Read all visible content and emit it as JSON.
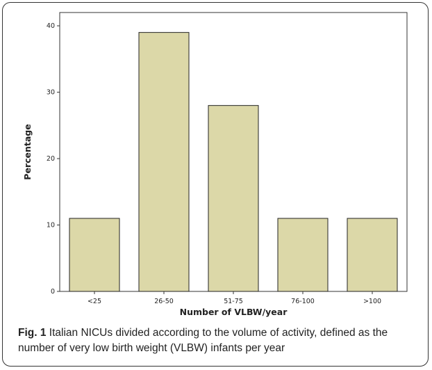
{
  "caption": {
    "label": "Fig. 1",
    "text": "Italian NICUs divided according to the volume of activity, defined as the number of very low birth weight (VLBW) infants per year"
  },
  "chart_data": {
    "type": "bar",
    "categories": [
      "<25",
      "26-50",
      "51-75",
      "76-100",
      ">100"
    ],
    "values": [
      11,
      39,
      28,
      11,
      11
    ],
    "xlabel": "Number of VLBW/year",
    "ylabel": "Percentage",
    "ylim": [
      0,
      42
    ],
    "yticks": [
      0,
      10,
      20,
      30,
      40
    ],
    "grid": false,
    "colors": {
      "bar_fill": "#dcd8a8",
      "bar_stroke": "#222222",
      "plot_bg": "#ffffff"
    }
  }
}
